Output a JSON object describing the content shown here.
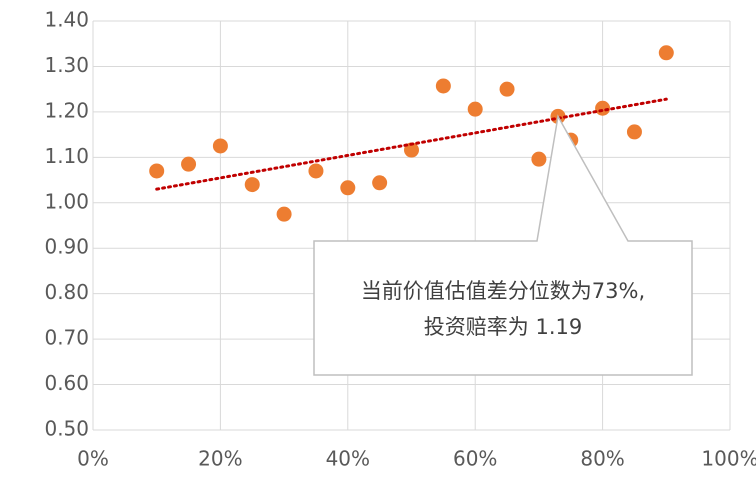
{
  "chart_data": {
    "type": "scatter",
    "x": [
      10,
      15,
      20,
      25,
      30,
      35,
      40,
      45,
      50,
      55,
      60,
      65,
      70,
      73,
      75,
      80,
      85,
      90
    ],
    "values": [
      1.07,
      1.085,
      1.125,
      1.04,
      0.975,
      1.07,
      1.033,
      1.044,
      1.116,
      1.257,
      1.206,
      1.25,
      1.096,
      1.19,
      1.138,
      1.208,
      1.156,
      1.33
    ],
    "color": "#ed7d31",
    "trendline": {
      "x": [
        10,
        90
      ],
      "values": [
        1.03,
        1.228
      ],
      "color": "#c00000"
    },
    "xlim": [
      0,
      100
    ],
    "xticks": [
      {
        "value": 0,
        "label": "0%"
      },
      {
        "value": 20,
        "label": "20%"
      },
      {
        "value": 40,
        "label": "40%"
      },
      {
        "value": 60,
        "label": "60%"
      },
      {
        "value": 80,
        "label": "80%"
      },
      {
        "value": 100,
        "label": "100%"
      }
    ],
    "ylim": [
      0.5,
      1.4
    ],
    "yticks": [
      {
        "value": 0.5,
        "label": "0.50"
      },
      {
        "value": 0.6,
        "label": "0.60"
      },
      {
        "value": 0.7,
        "label": "0.70"
      },
      {
        "value": 0.8,
        "label": "0.80"
      },
      {
        "value": 0.9,
        "label": "0.90"
      },
      {
        "value": 1.0,
        "label": "1.00"
      },
      {
        "value": 1.1,
        "label": "1.10"
      },
      {
        "value": 1.2,
        "label": "1.20"
      },
      {
        "value": 1.3,
        "label": "1.30"
      },
      {
        "value": 1.4,
        "label": "1.40"
      }
    ],
    "grid": true,
    "annotation": {
      "lines": [
        "当前价值估值差分位数为73%,",
        "投资赔率为 1.19"
      ],
      "point": 13
    }
  }
}
